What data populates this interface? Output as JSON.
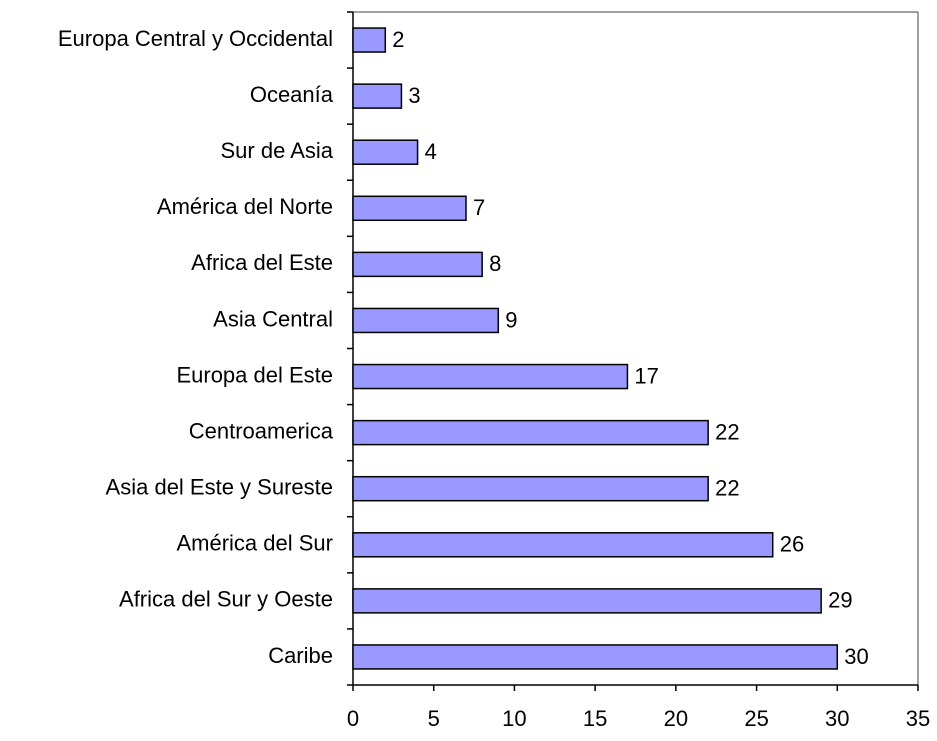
{
  "chart_data": {
    "type": "bar",
    "orientation": "horizontal",
    "categories": [
      "Europa Central y Occidental",
      "Oceanía",
      "Sur de Asia",
      "América del Norte",
      "Africa del Este",
      "Asia Central",
      "Europa del Este",
      "Centroamerica",
      "Asia del Este y Sureste",
      "América del Sur",
      "Africa del Sur y Oeste",
      "Caribe"
    ],
    "values": [
      2,
      3,
      4,
      7,
      8,
      9,
      17,
      22,
      22,
      26,
      29,
      30
    ],
    "color": "#9999ff",
    "xlim": [
      0,
      35
    ],
    "xticks": [
      0,
      5,
      10,
      15,
      20,
      25,
      30,
      35
    ],
    "grid": false
  }
}
